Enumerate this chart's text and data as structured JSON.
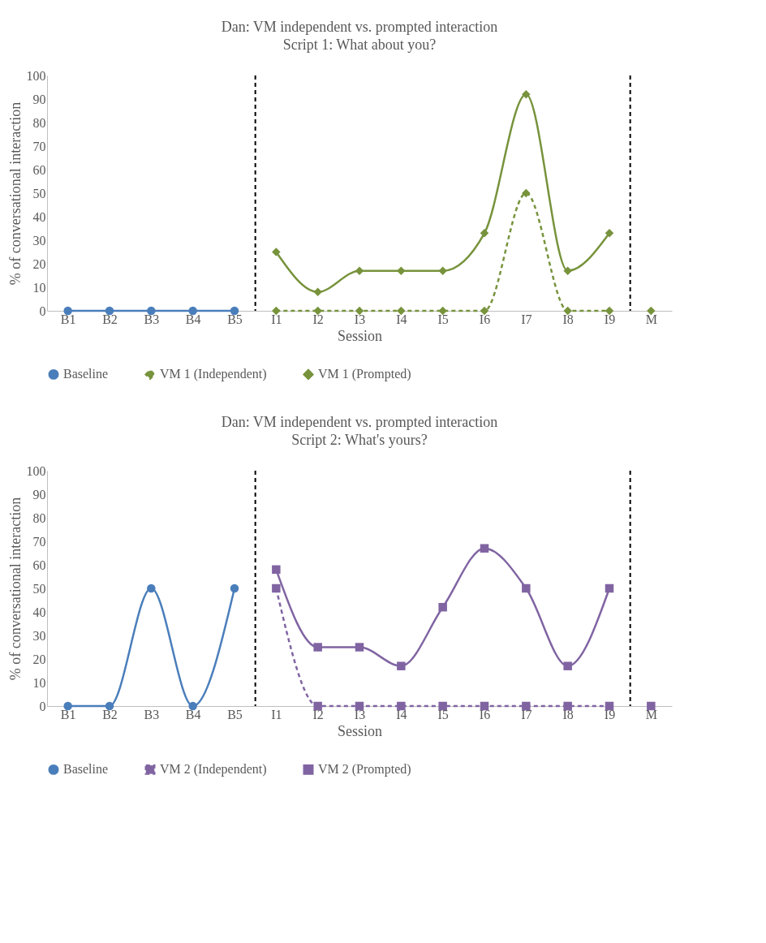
{
  "chart_data": [
    {
      "type": "line",
      "title": "Dan: VM independent  vs. prompted interaction",
      "subtitle": "Script 1: What about you?",
      "xlabel": "Session",
      "ylabel": "% of conversational interaction",
      "categories": [
        "B1",
        "B2",
        "B3",
        "B4",
        "B5",
        "I1",
        "I2",
        "I3",
        "I4",
        "I5",
        "I6",
        "I7",
        "I8",
        "I9",
        "M"
      ],
      "ylim": [
        0,
        100
      ],
      "yticks": [
        0,
        10,
        20,
        30,
        40,
        50,
        60,
        70,
        80,
        90,
        100
      ],
      "grid": false,
      "legend": "bottom",
      "series": [
        {
          "name": "Baseline",
          "color": "#4a7ebb",
          "marker": "circle",
          "line_style": "solid",
          "values": [
            0,
            0,
            0,
            0,
            0,
            null,
            null,
            null,
            null,
            null,
            null,
            null,
            null,
            null,
            null
          ]
        },
        {
          "name": "VM 1 (Independent)",
          "color": "#77933c",
          "marker": "diamond",
          "line_style": "dashed",
          "values": [
            null,
            null,
            null,
            null,
            null,
            0,
            0,
            0,
            0,
            0,
            0,
            50,
            0,
            0,
            null
          ]
        },
        {
          "name": "VM 1 (Prompted)",
          "color": "#77933c",
          "marker": "diamond",
          "line_style": "solid",
          "values": [
            null,
            null,
            null,
            null,
            null,
            25,
            8,
            17,
            17,
            17,
            33,
            92,
            17,
            33,
            null
          ]
        },
        {
          "color": "#77933c",
          "marker": "diamond",
          "line_style": "solid",
          "values": [
            null,
            null,
            null,
            null,
            null,
            null,
            null,
            null,
            null,
            null,
            null,
            null,
            null,
            null,
            0
          ]
        }
      ]
    },
    {
      "type": "line",
      "title": "Dan: VM independent  vs. prompted interaction",
      "subtitle": "Script 2: What's yours?",
      "xlabel": "Session",
      "ylabel": "% of conversational interaction",
      "categories": [
        "B1",
        "B2",
        "B3",
        "B4",
        "B5",
        "I1",
        "I2",
        "I3",
        "I4",
        "I5",
        "I6",
        "I7",
        "I8",
        "I9",
        "M"
      ],
      "ylim": [
        0,
        100
      ],
      "yticks": [
        0,
        10,
        20,
        30,
        40,
        50,
        60,
        70,
        80,
        90,
        100
      ],
      "grid": false,
      "legend": "bottom",
      "series": [
        {
          "name": "Baseline",
          "color": "#4a7ebb",
          "marker": "circle",
          "line_style": "solid",
          "values": [
            0,
            0,
            50,
            0,
            50,
            null,
            null,
            null,
            null,
            null,
            null,
            null,
            null,
            null,
            null
          ]
        },
        {
          "name": "VM 2 (Independent)",
          "color": "#8064a2",
          "marker": "square",
          "line_style": "dashed",
          "values": [
            null,
            null,
            null,
            null,
            null,
            50,
            0,
            0,
            0,
            0,
            0,
            0,
            0,
            0,
            null
          ]
        },
        {
          "name": "VM 2 (Prompted)",
          "color": "#8064a2",
          "marker": "square",
          "line_style": "solid",
          "values": [
            null,
            null,
            null,
            null,
            null,
            58,
            25,
            25,
            17,
            42,
            67,
            50,
            17,
            50,
            null
          ]
        },
        {
          "color": "#8064a2",
          "marker": "square",
          "line_style": "solid",
          "values": [
            null,
            null,
            null,
            null,
            null,
            null,
            null,
            null,
            null,
            null,
            null,
            null,
            null,
            null,
            0
          ]
        }
      ]
    }
  ]
}
